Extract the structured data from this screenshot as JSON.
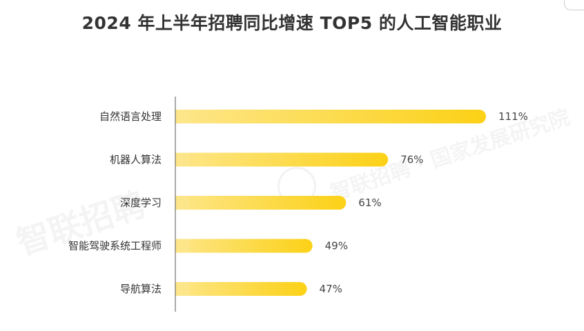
{
  "page": {
    "title": "2024 年上半年招聘同比增速 TOP5 的人工智能职业",
    "watermark_main": "智联招聘",
    "watermark_secondary": "智联招聘 · 国家发展研究院"
  },
  "colors": {
    "bar_start": "#FDE68A",
    "bar_end": "#FCD116",
    "axis": "#555555",
    "text": "#333333"
  },
  "chart_data": {
    "type": "bar",
    "orientation": "horizontal",
    "title": "2024 年上半年招聘同比增速 TOP5 的人工智能职业",
    "xlabel": "",
    "ylabel": "",
    "categories": [
      "自然语言处理",
      "机器人算法",
      "深度学习",
      "智能驾驶系统工程师",
      "导航算法"
    ],
    "values": [
      111,
      76,
      61,
      49,
      47
    ],
    "value_labels": [
      "111%",
      "76%",
      "61%",
      "49%",
      "47%"
    ],
    "unit": "%",
    "xlim": [
      0,
      111
    ],
    "grid": false,
    "legend": "none"
  }
}
